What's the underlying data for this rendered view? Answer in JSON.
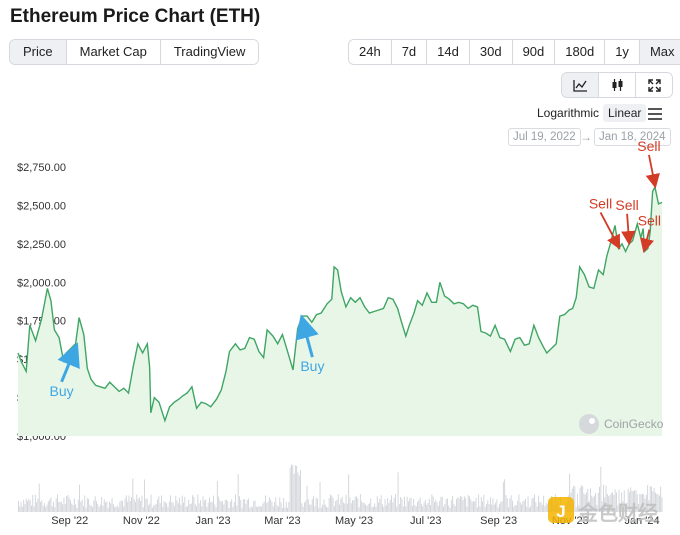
{
  "page": {
    "title": "Ethereum Price Chart (ETH)"
  },
  "view_tabs": [
    {
      "label": "Price",
      "active": true
    },
    {
      "label": "Market Cap",
      "active": false
    },
    {
      "label": "TradingView",
      "active": false
    }
  ],
  "ranges": [
    {
      "label": "24h",
      "active": false
    },
    {
      "label": "7d",
      "active": false
    },
    {
      "label": "14d",
      "active": false
    },
    {
      "label": "30d",
      "active": false
    },
    {
      "label": "90d",
      "active": false
    },
    {
      "label": "180d",
      "active": false
    },
    {
      "label": "1y",
      "active": false
    },
    {
      "label": "Max",
      "active": true
    }
  ],
  "chart_type_icons": [
    "line-chart-icon",
    "candlestick-icon",
    "fullscreen-icon"
  ],
  "scale": {
    "log_label": "Logarithmic",
    "linear_label": "Linear",
    "selected": "Linear",
    "menu_icon": "hamburger-menu-icon"
  },
  "date_range": {
    "from": "Jul 19, 2022",
    "to": "Jan 18, 2024",
    "arrow": "→"
  },
  "watermark": {
    "text": "CoinGecko",
    "icon": "gecko-icon"
  },
  "colors": {
    "line": "#3fa564",
    "fill": "#e8f6e8",
    "buy": "#3ea7e3",
    "sell": "#d23b26",
    "volume": "#cfd3d8"
  },
  "chart_data": {
    "type": "line",
    "title": "",
    "xlabel": "",
    "ylabel": "",
    "ylim": [
      1000,
      2750
    ],
    "yticks": [
      "$1,000.00",
      "$1,250.00",
      "$1,500.00",
      "$1,750.00",
      "$2,000.00",
      "$2,250.00",
      "$2,500.00",
      "$2,750.00"
    ],
    "ytick_values": [
      1000,
      1250,
      1500,
      1750,
      2000,
      2250,
      2500,
      2750
    ],
    "xlim": [
      "2022-07-19",
      "2024-01-18"
    ],
    "xticks": [
      {
        "label": "Sep '22",
        "date": "2022-09-01"
      },
      {
        "label": "Nov '22",
        "date": "2022-11-01"
      },
      {
        "label": "Jan '23",
        "date": "2023-01-01"
      },
      {
        "label": "Mar '23",
        "date": "2023-03-01"
      },
      {
        "label": "May '23",
        "date": "2023-05-01"
      },
      {
        "label": "Jul '23",
        "date": "2023-07-01"
      },
      {
        "label": "Sep '23",
        "date": "2023-09-01"
      },
      {
        "label": "Nov '23",
        "date": "2023-11-01"
      },
      {
        "label": "Jan '24",
        "date": "2024-01-01"
      }
    ],
    "grid": false,
    "series": [
      {
        "points": [
          [
            "2022-07-19",
            1540
          ],
          [
            "2022-07-22",
            1480
          ],
          [
            "2022-07-26",
            1420
          ],
          [
            "2022-07-29",
            1720
          ],
          [
            "2022-08-03",
            1620
          ],
          [
            "2022-08-08",
            1760
          ],
          [
            "2022-08-13",
            1960
          ],
          [
            "2022-08-16",
            1880
          ],
          [
            "2022-08-19",
            1690
          ],
          [
            "2022-08-23",
            1640
          ],
          [
            "2022-08-27",
            1480
          ],
          [
            "2022-08-29",
            1540
          ],
          [
            "2022-09-02",
            1570
          ],
          [
            "2022-09-06",
            1600
          ],
          [
            "2022-09-09",
            1770
          ],
          [
            "2022-09-13",
            1660
          ],
          [
            "2022-09-16",
            1440
          ],
          [
            "2022-09-19",
            1370
          ],
          [
            "2022-09-23",
            1330
          ],
          [
            "2022-09-27",
            1320
          ],
          [
            "2022-10-01",
            1310
          ],
          [
            "2022-10-05",
            1350
          ],
          [
            "2022-10-09",
            1320
          ],
          [
            "2022-10-13",
            1290
          ],
          [
            "2022-10-17",
            1310
          ],
          [
            "2022-10-21",
            1280
          ],
          [
            "2022-10-25",
            1450
          ],
          [
            "2022-10-29",
            1600
          ],
          [
            "2022-11-02",
            1540
          ],
          [
            "2022-11-06",
            1600
          ],
          [
            "2022-11-08",
            1450
          ],
          [
            "2022-11-09",
            1150
          ],
          [
            "2022-11-12",
            1250
          ],
          [
            "2022-11-16",
            1220
          ],
          [
            "2022-11-21",
            1100
          ],
          [
            "2022-11-25",
            1190
          ],
          [
            "2022-11-29",
            1220
          ],
          [
            "2022-12-03",
            1240
          ],
          [
            "2022-12-06",
            1260
          ],
          [
            "2022-12-10",
            1280
          ],
          [
            "2022-12-14",
            1320
          ],
          [
            "2022-12-18",
            1180
          ],
          [
            "2022-12-22",
            1220
          ],
          [
            "2022-12-26",
            1210
          ],
          [
            "2022-12-30",
            1190
          ],
          [
            "2023-01-04",
            1240
          ],
          [
            "2023-01-08",
            1300
          ],
          [
            "2023-01-12",
            1420
          ],
          [
            "2023-01-15",
            1550
          ],
          [
            "2023-01-20",
            1600
          ],
          [
            "2023-01-24",
            1560
          ],
          [
            "2023-01-28",
            1570
          ],
          [
            "2023-02-01",
            1640
          ],
          [
            "2023-02-05",
            1630
          ],
          [
            "2023-02-09",
            1550
          ],
          [
            "2023-02-13",
            1510
          ],
          [
            "2023-02-16",
            1690
          ],
          [
            "2023-02-21",
            1650
          ],
          [
            "2023-02-25",
            1600
          ],
          [
            "2023-03-01",
            1660
          ],
          [
            "2023-03-05",
            1560
          ],
          [
            "2023-03-10",
            1430
          ],
          [
            "2023-03-14",
            1700
          ],
          [
            "2023-03-18",
            1780
          ],
          [
            "2023-03-22",
            1780
          ],
          [
            "2023-03-26",
            1740
          ],
          [
            "2023-03-30",
            1790
          ],
          [
            "2023-04-03",
            1800
          ],
          [
            "2023-04-08",
            1860
          ],
          [
            "2023-04-12",
            1890
          ],
          [
            "2023-04-14",
            2100
          ],
          [
            "2023-04-17",
            2080
          ],
          [
            "2023-04-20",
            1940
          ],
          [
            "2023-04-24",
            1840
          ],
          [
            "2023-04-28",
            1900
          ],
          [
            "2023-05-02",
            1870
          ],
          [
            "2023-05-06",
            1900
          ],
          [
            "2023-05-10",
            1840
          ],
          [
            "2023-05-14",
            1800
          ],
          [
            "2023-05-18",
            1810
          ],
          [
            "2023-05-22",
            1820
          ],
          [
            "2023-05-26",
            1830
          ],
          [
            "2023-05-30",
            1900
          ],
          [
            "2023-06-03",
            1890
          ],
          [
            "2023-06-07",
            1830
          ],
          [
            "2023-06-10",
            1750
          ],
          [
            "2023-06-14",
            1650
          ],
          [
            "2023-06-17",
            1720
          ],
          [
            "2023-06-21",
            1800
          ],
          [
            "2023-06-24",
            1880
          ],
          [
            "2023-06-28",
            1850
          ],
          [
            "2023-07-02",
            1930
          ],
          [
            "2023-07-06",
            1870
          ],
          [
            "2023-07-10",
            1870
          ],
          [
            "2023-07-13",
            2000
          ],
          [
            "2023-07-17",
            1910
          ],
          [
            "2023-07-21",
            1890
          ],
          [
            "2023-07-25",
            1860
          ],
          [
            "2023-07-29",
            1870
          ],
          [
            "2023-08-02",
            1860
          ],
          [
            "2023-08-06",
            1830
          ],
          [
            "2023-08-10",
            1850
          ],
          [
            "2023-08-14",
            1840
          ],
          [
            "2023-08-17",
            1680
          ],
          [
            "2023-08-21",
            1670
          ],
          [
            "2023-08-25",
            1650
          ],
          [
            "2023-08-29",
            1720
          ],
          [
            "2023-09-02",
            1640
          ],
          [
            "2023-09-06",
            1630
          ],
          [
            "2023-09-11",
            1550
          ],
          [
            "2023-09-15",
            1630
          ],
          [
            "2023-09-19",
            1640
          ],
          [
            "2023-09-23",
            1590
          ],
          [
            "2023-09-27",
            1600
          ],
          [
            "2023-10-01",
            1720
          ],
          [
            "2023-10-05",
            1640
          ],
          [
            "2023-10-09",
            1580
          ],
          [
            "2023-10-12",
            1540
          ],
          [
            "2023-10-16",
            1570
          ],
          [
            "2023-10-20",
            1600
          ],
          [
            "2023-10-23",
            1780
          ],
          [
            "2023-10-27",
            1790
          ],
          [
            "2023-10-31",
            1820
          ],
          [
            "2023-11-03",
            1830
          ],
          [
            "2023-11-06",
            1900
          ],
          [
            "2023-11-09",
            2100
          ],
          [
            "2023-11-13",
            2050
          ],
          [
            "2023-11-17",
            1970
          ],
          [
            "2023-11-21",
            1960
          ],
          [
            "2023-11-25",
            2080
          ],
          [
            "2023-11-29",
            2050
          ],
          [
            "2023-12-02",
            2170
          ],
          [
            "2023-12-05",
            2250
          ],
          [
            "2023-12-09",
            2370
          ],
          [
            "2023-12-12",
            2220
          ],
          [
            "2023-12-15",
            2250
          ],
          [
            "2023-12-18",
            2200
          ],
          [
            "2023-12-21",
            2250
          ],
          [
            "2023-12-24",
            2270
          ],
          [
            "2023-12-28",
            2380
          ],
          [
            "2023-12-31",
            2290
          ],
          [
            "2024-01-02",
            2350
          ],
          [
            "2024-01-03",
            2200
          ],
          [
            "2024-01-06",
            2220
          ],
          [
            "2024-01-08",
            2330
          ],
          [
            "2024-01-10",
            2590
          ],
          [
            "2024-01-12",
            2620
          ],
          [
            "2024-01-15",
            2510
          ],
          [
            "2024-01-18",
            2520
          ]
        ]
      }
    ],
    "annotations": [
      {
        "text": "Buy",
        "date": "2022-09-06",
        "value": 1600,
        "color": "#3ea7e3"
      },
      {
        "text": "Buy",
        "date": "2023-03-18",
        "value": 1780,
        "color": "#3ea7e3"
      },
      {
        "text": "Sell",
        "date": "2023-12-12",
        "value": 2220,
        "color": "#d23b26"
      },
      {
        "text": "Sell",
        "date": "2023-12-21",
        "value": 2250,
        "color": "#d23b26"
      },
      {
        "text": "Sell",
        "date": "2024-01-03",
        "value": 2200,
        "color": "#d23b26"
      },
      {
        "text": "Sell",
        "date": "2024-01-12",
        "value": 2620,
        "color": "#d23b26"
      }
    ]
  },
  "overlay_logo": {
    "text": "金色财经",
    "icon": "golden-finance-logo-icon"
  }
}
